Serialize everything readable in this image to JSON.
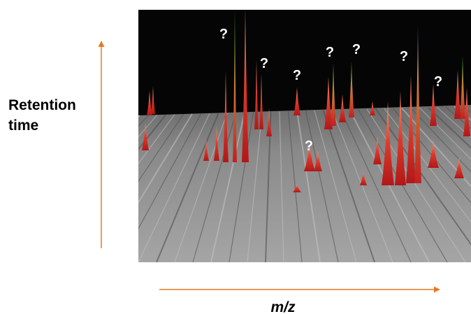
{
  "y_axis_label": [
    "Retention",
    "time"
  ],
  "x_axis_label": "m/z",
  "markers": [
    "?",
    "?",
    "?",
    "?",
    "?",
    "?",
    "?",
    "?"
  ]
}
